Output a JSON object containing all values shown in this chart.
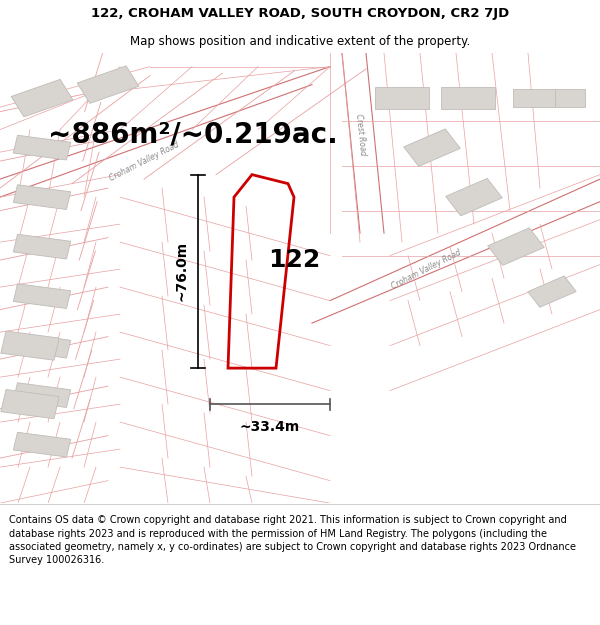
{
  "title": "122, CROHAM VALLEY ROAD, SOUTH CROYDON, CR2 7JD",
  "subtitle": "Map shows position and indicative extent of the property.",
  "footer_lines": [
    "Contains OS data © Crown copyright and database right 2021. This information is subject to Crown copyright and database rights 2023 and is reproduced with the permission of",
    "HM Land Registry. The polygons (including the associated geometry, namely x, y co-ordinates) are subject to Crown copyright and database rights 2023 Ordnance Survey",
    "100026316."
  ],
  "area_text": "~886m²/~0.219ac.",
  "label_122": "122",
  "dim_height": "~76.0m",
  "dim_width": "~33.4m",
  "map_bg": "#f5f2f2",
  "line_color": "#e8a0a0",
  "line_color_dark": "#d07070",
  "property_edge": "#cc0000",
  "building_fill": "#d8d4d0",
  "building_stroke": "#c0bcb8",
  "road_label_color": "#888888",
  "title_fontsize": 9.5,
  "subtitle_fontsize": 8.5,
  "footer_fontsize": 7.0,
  "area_fontsize": 20,
  "label_fontsize": 18,
  "dim_fontsize": 10
}
